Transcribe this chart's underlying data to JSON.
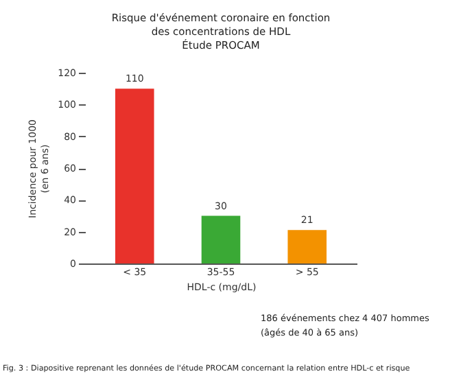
{
  "chart_data": {
    "type": "bar",
    "title": "Risque d'événement coronaire en fonction\ndes concentrations de HDL\nÉtude PROCAM",
    "categories": [
      "< 35",
      "35-55",
      "> 55"
    ],
    "values": [
      110,
      30,
      21
    ],
    "colors": [
      "#e8322b",
      "#3aa935",
      "#f39200"
    ],
    "xlabel": "HDL-c (mg/dL)",
    "ylabel": "Incidence pour 1000\n(en 6 ans)",
    "ylim": [
      0,
      120
    ],
    "yticks": [
      0,
      20,
      40,
      60,
      80,
      100,
      120
    ],
    "data_labels": true,
    "grid": false,
    "annotations": [
      "186 événements chez 4 407 hommes\n(âgés de 40 à 65 ans)",
      "Fig. 3 : Diapositive reprenant les données de l'étude PROCAM concernant la relation entre HDL-c et risque"
    ]
  }
}
